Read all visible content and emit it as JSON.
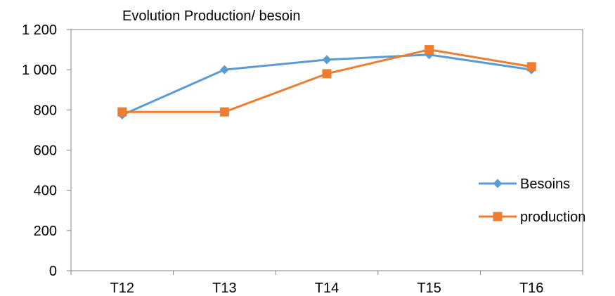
{
  "chart_data": {
    "type": "line",
    "title": "Evolution Production/ besoin",
    "xlabel": "",
    "ylabel": "",
    "categories": [
      "T12",
      "T13",
      "T14",
      "T15",
      "T16"
    ],
    "ylim": [
      0,
      1200
    ],
    "yticks": [
      0,
      200,
      400,
      600,
      800,
      1000,
      1200
    ],
    "ytick_labels": [
      "0",
      "200",
      "400",
      "600",
      "800",
      "1 000",
      "1 200"
    ],
    "grid": false,
    "legend_position": "right",
    "series": [
      {
        "name": "Besoins",
        "values": [
          775,
          1000,
          1050,
          1075,
          1000
        ],
        "color": "#5B9BD5",
        "marker": "diamond"
      },
      {
        "name": "production",
        "values": [
          790,
          790,
          980,
          1100,
          1015
        ],
        "color": "#ED7D31",
        "marker": "square"
      }
    ]
  }
}
